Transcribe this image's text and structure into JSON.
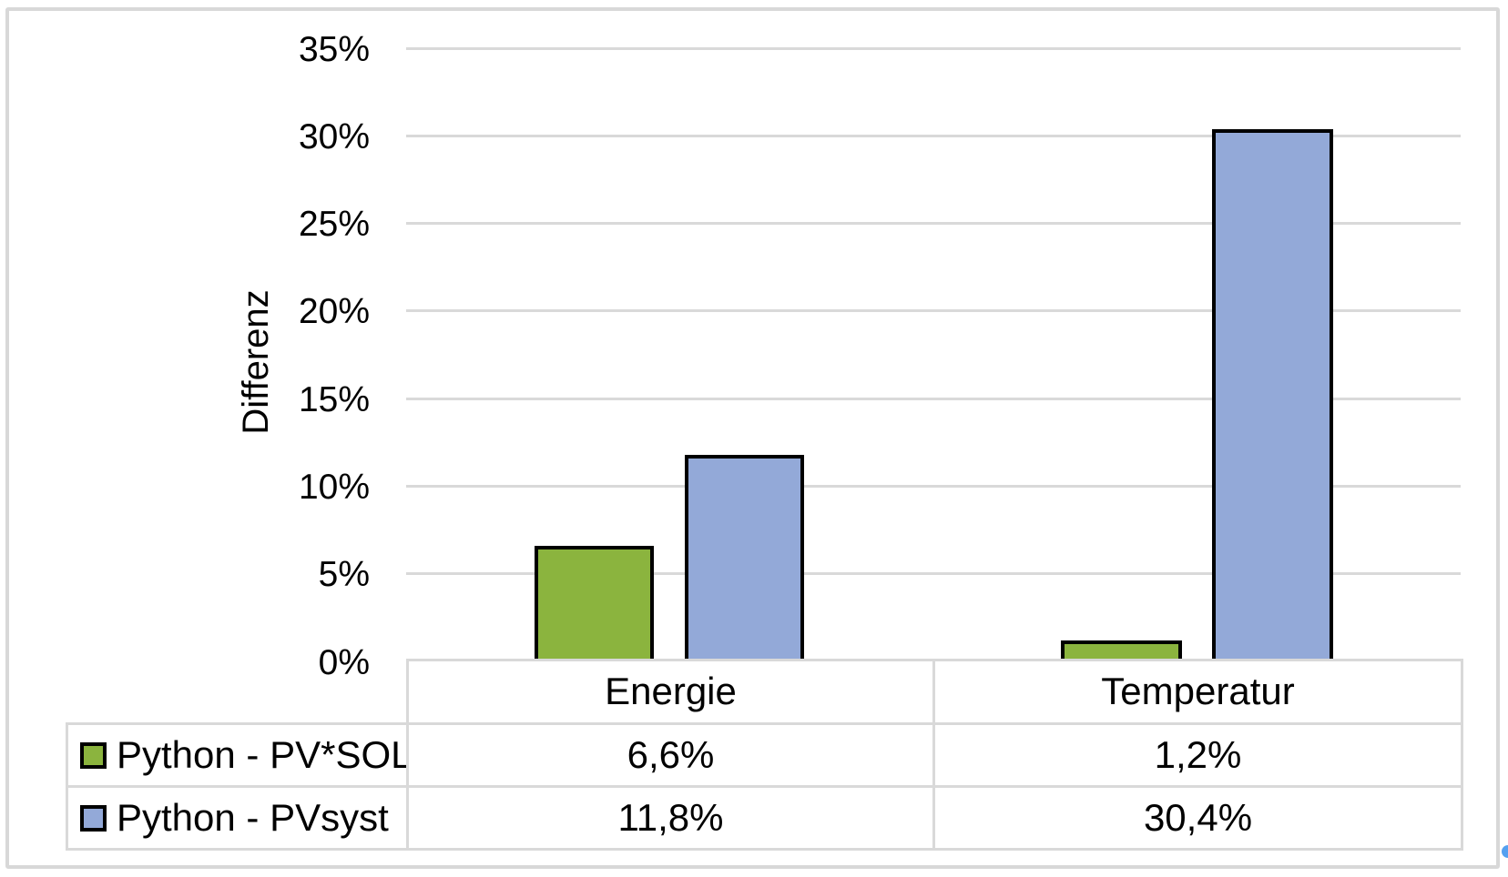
{
  "chart_data": {
    "type": "bar",
    "title": "",
    "ylabel": "Differenz",
    "xlabel": "",
    "categories": [
      "Energie",
      "Temperatur"
    ],
    "series": [
      {
        "name": "Python - PV*SOL",
        "color": "#8BB43E",
        "values": [
          6.6,
          1.2
        ],
        "value_labels": [
          "6,6%",
          "1,2%"
        ]
      },
      {
        "name": "Python - PVsyst",
        "color": "#93A9D8",
        "values": [
          11.8,
          30.4
        ],
        "value_labels": [
          "11,8%",
          "30,4%"
        ]
      }
    ],
    "ylim": [
      0,
      35
    ],
    "ytick_labels": [
      "35%",
      "30%",
      "25%",
      "20%",
      "15%",
      "10%",
      "5%",
      "0%"
    ],
    "ytick_values": [
      35,
      30,
      25,
      20,
      15,
      10,
      5,
      0
    ],
    "grid": true,
    "gridline_color": "#D9D9D9",
    "bar_border_color": "#000000",
    "legend_position": "data-table-left",
    "data_table_shown": true
  },
  "decorations": {
    "frame_color": "#D8D8D8",
    "selection_handle_color": "#54A0F0"
  }
}
